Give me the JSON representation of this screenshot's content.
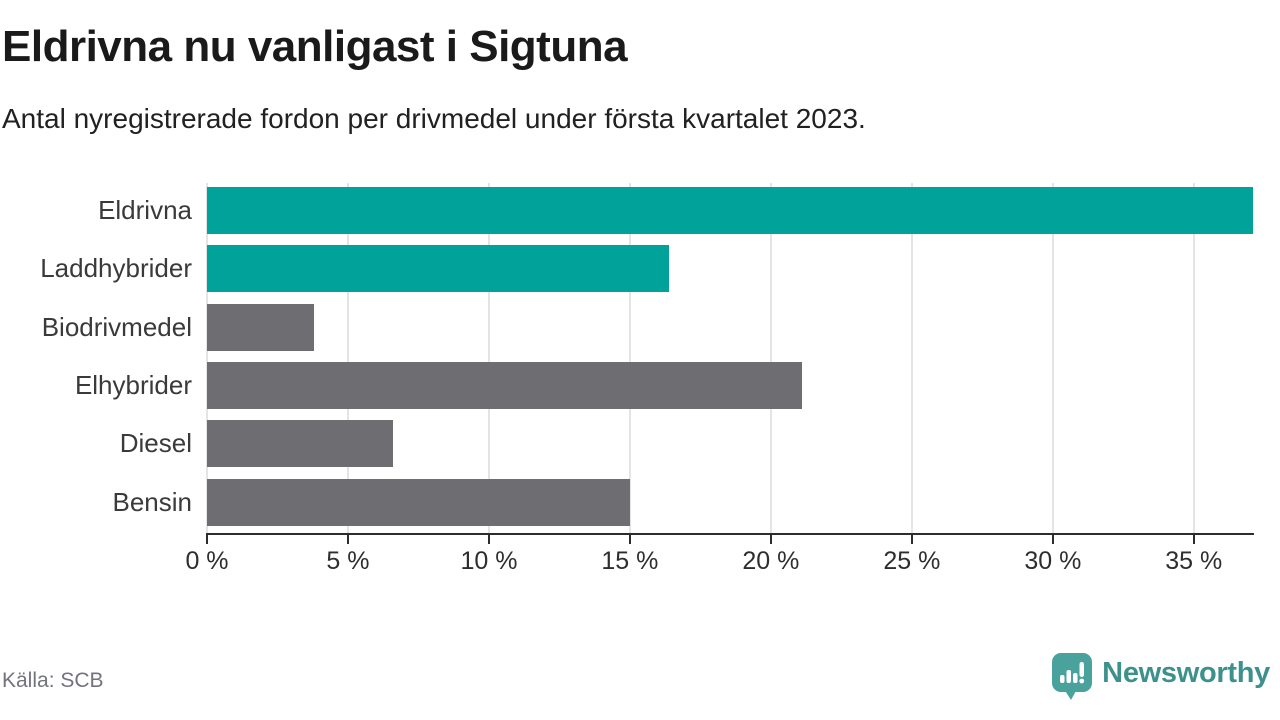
{
  "header": {
    "title": "Eldrivna nu vanligast i Sigtuna",
    "subtitle": "Antal nyregistrerade fordon per drivmedel under första kvartalet 2023."
  },
  "chart_data": {
    "type": "bar",
    "orientation": "horizontal",
    "title": "Eldrivna nu vanligast i Sigtuna",
    "subtitle": "Antal nyregistrerade fordon per drivmedel under första kvartalet 2023.",
    "categories": [
      "Eldrivna",
      "Laddhybrider",
      "Biodrivmedel",
      "Elhybrider",
      "Diesel",
      "Bensin"
    ],
    "values": [
      37.1,
      16.4,
      3.8,
      21.1,
      6.6,
      15.0
    ],
    "unit": "%",
    "bar_colors": [
      "#00a29a",
      "#00a29a",
      "#6d6d72",
      "#6d6d72",
      "#6d6d72",
      "#6d6d72"
    ],
    "highlight_color": "#00a29a",
    "default_color": "#6d6d72",
    "xlim": [
      0,
      37.1
    ],
    "xticks": [
      0,
      5,
      10,
      15,
      20,
      25,
      30,
      35
    ],
    "xtick_labels": [
      "0 %",
      "5 %",
      "10 %",
      "15 %",
      "20 %",
      "25 %",
      "30 %",
      "35 %"
    ],
    "grid": true,
    "gridline_color": "#e4e4e6",
    "legend": "none"
  },
  "footer": {
    "source": "Källa: SCB",
    "brand": "Newsworthy",
    "brand_color": "#3d918d",
    "icon_color": "#4aa29c"
  }
}
